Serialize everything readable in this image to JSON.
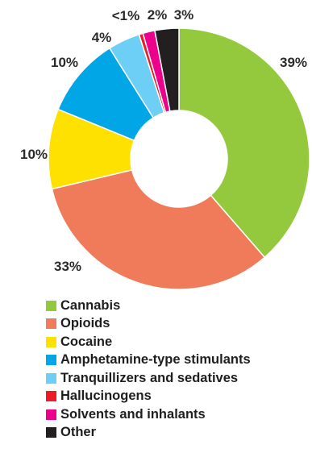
{
  "chart_data": {
    "type": "pie",
    "variant": "donut",
    "categories": [
      "Cannabis",
      "Opioids",
      "Cocaine",
      "Amphetamine-type stimulants",
      "Tranquillizers and sedatives",
      "Hallucinogens",
      "Solvents and inhalants",
      "Other"
    ],
    "values": [
      39,
      33,
      10,
      10,
      4,
      0.5,
      1.5,
      3
    ],
    "labels": [
      "39%",
      "33%",
      "10%",
      "10%",
      "4%",
      "<1%",
      "2%",
      "3%"
    ],
    "colors": [
      "#95c93d",
      "#f07b5a",
      "#ffe100",
      "#00a6e6",
      "#6dcff6",
      "#ed1c24",
      "#ec008c",
      "#231f20"
    ],
    "legend_position": "bottom-left",
    "title": ""
  }
}
